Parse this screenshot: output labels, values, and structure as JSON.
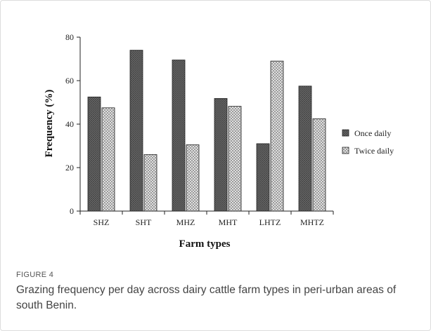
{
  "figure": {
    "label": "FIGURE 4",
    "caption": "Grazing frequency per day across dairy cattle farm types in peri-urban areas of south Benin."
  },
  "colors": {
    "once_fill": "#6e6e6e",
    "twice_fill": "#d8d8d8",
    "outline": "#222222"
  },
  "chart_data": {
    "type": "bar",
    "title": "",
    "xlabel": "Farm types",
    "ylabel": "Frequency (%)",
    "ylim": [
      0,
      80
    ],
    "yticks": [
      0,
      20,
      40,
      60,
      80
    ],
    "categories": [
      "SHZ",
      "SHT",
      "MHZ",
      "MHT",
      "LHTZ",
      "MHTZ"
    ],
    "series": [
      {
        "name": "Once daily",
        "values": [
          52.5,
          74,
          69.5,
          51.8,
          31,
          57.5
        ],
        "pattern": "dark-crosshatch"
      },
      {
        "name": "Twice daily",
        "values": [
          47.5,
          26,
          30.5,
          48.2,
          69,
          42.5
        ],
        "pattern": "light-crosshatch"
      }
    ],
    "grid": false,
    "legend": "right"
  }
}
